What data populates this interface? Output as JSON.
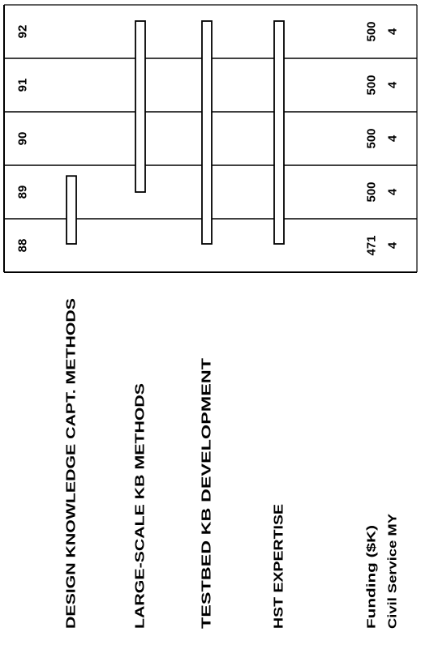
{
  "chart_data": {
    "type": "timeline",
    "years": [
      "88",
      "89",
      "90",
      "91",
      "92"
    ],
    "tasks": [
      {
        "label": "DESIGN KNOWLEDGE CAPT. METHODS",
        "start": 88.0,
        "end": 89.8
      },
      {
        "label": "LARGE-SCALE KB METHODS",
        "start": 89.5,
        "end": 92.0
      },
      {
        "label": "TESTBED KB DEVELOPMENT",
        "start": 88.0,
        "end": 92.0
      },
      {
        "label": "HST EXPERTISE",
        "start": 88.0,
        "end": 92.0
      }
    ],
    "rows": [
      {
        "label": "Funding ($K)",
        "values": [
          "471",
          "500",
          "500",
          "500",
          "500"
        ]
      },
      {
        "label": "Civil Service MY",
        "values": [
          "4",
          "4",
          "4",
          "4",
          "4"
        ]
      }
    ]
  }
}
